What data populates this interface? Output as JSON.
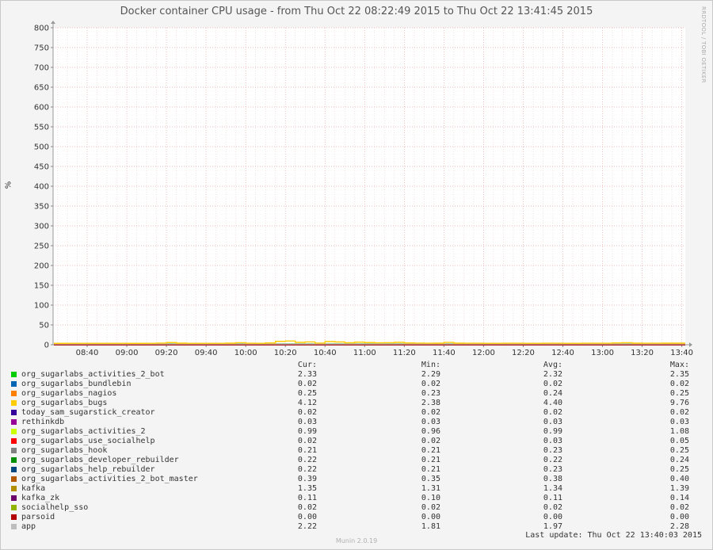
{
  "chart_data": {
    "type": "line",
    "title": "Docker container CPU usage - from Thu Oct 22 08:22:49 2015 to Thu Oct 22 13:41:45 2015",
    "ylabel": "%",
    "ylim": [
      0,
      800
    ],
    "yticks": [
      "0",
      "50",
      "100",
      "150",
      "200",
      "250",
      "300",
      "350",
      "400",
      "450",
      "500",
      "550",
      "600",
      "650",
      "700",
      "750",
      "800"
    ],
    "xticks": [
      "08:40",
      "09:00",
      "09:20",
      "09:40",
      "10:00",
      "10:20",
      "10:40",
      "11:00",
      "11:20",
      "11:40",
      "12:00",
      "12:20",
      "12:40",
      "13:00",
      "13:20",
      "13:40"
    ],
    "x_start_time": "08:22:49",
    "x_end_time": "13:41:45",
    "grid": true,
    "legend_position": "bottom",
    "side_label": "RRDTOOL / TOBI OETIKER",
    "columns": {
      "cur": "Cur:",
      "min": "Min:",
      "avg": "Avg:",
      "max": "Max:"
    },
    "series": [
      {
        "name": "org_sugarlabs_activities_2_bot",
        "color": "#00cc00",
        "cur": "2.33",
        "min": "2.29",
        "avg": "2.32",
        "max": "2.35"
      },
      {
        "name": "org_sugarlabs_bundlebin",
        "color": "#0066b3",
        "cur": "0.02",
        "min": "0.02",
        "avg": "0.02",
        "max": "0.02"
      },
      {
        "name": "org_sugarlabs_nagios",
        "color": "#ff8000",
        "cur": "0.25",
        "min": "0.23",
        "avg": "0.24",
        "max": "0.25"
      },
      {
        "name": "org_sugarlabs_bugs",
        "color": "#ffcc00",
        "cur": "4.12",
        "min": "2.38",
        "avg": "4.40",
        "max": "9.76"
      },
      {
        "name": "today_sam_sugarstick_creator",
        "color": "#330099",
        "cur": "0.02",
        "min": "0.02",
        "avg": "0.02",
        "max": "0.02"
      },
      {
        "name": "rethinkdb",
        "color": "#990099",
        "cur": "0.03",
        "min": "0.03",
        "avg": "0.03",
        "max": "0.03"
      },
      {
        "name": "org_sugarlabs_activities_2",
        "color": "#ccff00",
        "cur": "0.99",
        "min": "0.96",
        "avg": "0.99",
        "max": "1.08"
      },
      {
        "name": "org_sugarlabs_use_socialhelp",
        "color": "#ff0000",
        "cur": "0.02",
        "min": "0.02",
        "avg": "0.03",
        "max": "0.05"
      },
      {
        "name": "org_sugarlabs_hook",
        "color": "#808080",
        "cur": "0.21",
        "min": "0.21",
        "avg": "0.23",
        "max": "0.25"
      },
      {
        "name": "org_sugarlabs_developer_rebuilder",
        "color": "#008f00",
        "cur": "0.22",
        "min": "0.21",
        "avg": "0.22",
        "max": "0.24"
      },
      {
        "name": "org_sugarlabs_help_rebuilder",
        "color": "#00487d",
        "cur": "0.22",
        "min": "0.21",
        "avg": "0.23",
        "max": "0.25"
      },
      {
        "name": "org_sugarlabs_activities_2_bot_master",
        "color": "#b35a00",
        "cur": "0.39",
        "min": "0.35",
        "avg": "0.38",
        "max": "0.40"
      },
      {
        "name": "kafka",
        "color": "#b38f00",
        "cur": "1.35",
        "min": "1.31",
        "avg": "1.34",
        "max": "1.39"
      },
      {
        "name": "kafka_zk",
        "color": "#6b006b",
        "cur": "0.11",
        "min": "0.10",
        "avg": "0.11",
        "max": "0.14"
      },
      {
        "name": "socialhelp_sso",
        "color": "#8fb300",
        "cur": "0.02",
        "min": "0.02",
        "avg": "0.02",
        "max": "0.02"
      },
      {
        "name": "parsoid",
        "color": "#b30000",
        "cur": "0.00",
        "min": "0.00",
        "avg": "0.00",
        "max": "0.00"
      },
      {
        "name": "app",
        "color": "#bebebe",
        "cur": "2.22",
        "min": "1.81",
        "avg": "1.97",
        "max": "2.28"
      }
    ],
    "bugs_series_trace": {
      "x": [
        "08:23",
        "08:30",
        "08:40",
        "08:50",
        "09:00",
        "09:10",
        "09:15",
        "09:20",
        "09:25",
        "09:30",
        "09:40",
        "09:50",
        "09:55",
        "10:00",
        "10:05",
        "10:10",
        "10:15",
        "10:20",
        "10:25",
        "10:30",
        "10:35",
        "10:40",
        "10:45",
        "10:50",
        "10:55",
        "11:00",
        "11:05",
        "11:10",
        "11:15",
        "11:20",
        "11:25",
        "11:30",
        "11:35",
        "11:40",
        "11:45",
        "11:50",
        "12:00",
        "12:10",
        "12:20",
        "12:30",
        "12:40",
        "12:50",
        "13:00",
        "13:05",
        "13:10",
        "13:15",
        "13:20",
        "13:30",
        "13:41"
      ],
      "y": [
        3.5,
        3.6,
        3.7,
        3.6,
        3.5,
        3.7,
        4.2,
        5.5,
        4.0,
        3.6,
        3.7,
        4.0,
        5.2,
        3.8,
        3.7,
        4.5,
        8.5,
        9.3,
        6.0,
        7.2,
        4.2,
        8.0,
        7.0,
        5.0,
        6.5,
        5.5,
        4.8,
        5.2,
        6.0,
        4.5,
        4.2,
        3.9,
        4.0,
        5.8,
        4.0,
        3.8,
        3.7,
        3.8,
        3.7,
        3.8,
        3.7,
        3.8,
        3.9,
        4.6,
        5.2,
        4.0,
        3.9,
        4.0,
        4.1
      ]
    }
  },
  "last_update": "Last update:  Thu Oct 22 13:40:03 2015",
  "munin_version": "Munin 2.0.19"
}
